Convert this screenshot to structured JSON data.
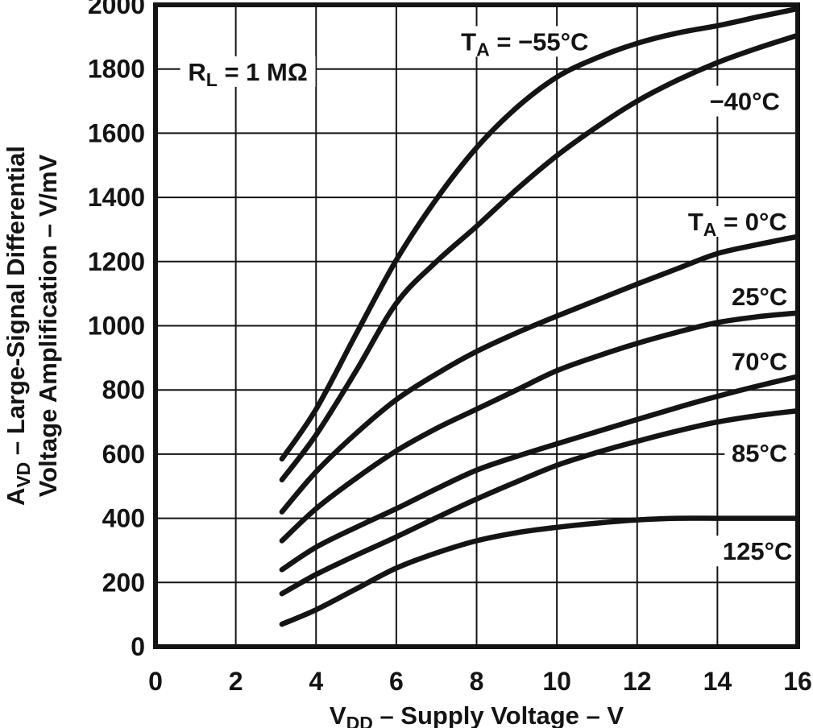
{
  "page": {
    "background": "#ffffff",
    "ink": "#141414"
  },
  "chart_data": {
    "type": "line",
    "title": "",
    "xlabel": {
      "pre": "V",
      "sub": "DD",
      "post": " – Supply Voltage – V"
    },
    "ylabel": [
      {
        "pre": "A",
        "sub": "VD",
        "post": " – Large-Signal Differential"
      },
      {
        "pre": "",
        "sub": "",
        "post": "Voltage Amplification – V/mV"
      }
    ],
    "xlim": [
      0,
      16
    ],
    "ylim": [
      0,
      2000
    ],
    "xticks": [
      0,
      2,
      4,
      6,
      8,
      10,
      12,
      14,
      16
    ],
    "yticks": [
      0,
      200,
      400,
      600,
      800,
      1000,
      1200,
      1400,
      1600,
      1800,
      2000
    ],
    "grid": true,
    "legend_position": "inline-labels",
    "condition": {
      "pre": "R",
      "sub": "L",
      "post": " = 1 MΩ",
      "x": 2.3,
      "y": 1792
    },
    "x": [
      3.15,
      4,
      5,
      6,
      7,
      8,
      9,
      10,
      11,
      12,
      13,
      14,
      15,
      16
    ],
    "series": [
      {
        "name": "TA = −55°C",
        "temperature_c": -55,
        "values": [
          585,
          740,
          975,
          1205,
          1395,
          1555,
          1680,
          1775,
          1835,
          1880,
          1912,
          1935,
          1962,
          1988
        ],
        "label": {
          "pre": "T",
          "sub": "A",
          "post": " = −55°C",
          "x": 9.2,
          "y": 1886
        }
      },
      {
        "name": "−40°C",
        "temperature_c": -40,
        "values": [
          520,
          660,
          860,
          1070,
          1200,
          1310,
          1425,
          1530,
          1620,
          1700,
          1765,
          1820,
          1865,
          1905
        ],
        "label": {
          "pre": "",
          "sub": "",
          "post": "−40°C",
          "x": 14.68,
          "y": 1700
        }
      },
      {
        "name": "TA = 0°C",
        "temperature_c": 0,
        "values": [
          420,
          545,
          665,
          770,
          850,
          920,
          978,
          1030,
          1080,
          1130,
          1178,
          1225,
          1253,
          1278
        ],
        "label": {
          "pre": "T",
          "sub": "A",
          "post": " = 0°C",
          "x": 14.5,
          "y": 1325
        }
      },
      {
        "name": "25°C",
        "temperature_c": 25,
        "values": [
          330,
          430,
          525,
          610,
          680,
          740,
          800,
          860,
          905,
          945,
          980,
          1010,
          1028,
          1040
        ],
        "label": {
          "pre": "",
          "sub": "",
          "post": "25°C",
          "x": 15.05,
          "y": 1092
        }
      },
      {
        "name": "70°C",
        "temperature_c": 70,
        "values": [
          240,
          310,
          372,
          430,
          492,
          550,
          593,
          632,
          670,
          708,
          745,
          780,
          812,
          842
        ],
        "label": {
          "pre": "",
          "sub": "",
          "post": "70°C",
          "x": 15.05,
          "y": 890
        }
      },
      {
        "name": "85°C",
        "temperature_c": 85,
        "values": [
          165,
          225,
          285,
          342,
          402,
          460,
          514,
          565,
          605,
          640,
          672,
          700,
          720,
          735
        ],
        "label": {
          "pre": "",
          "sub": "",
          "post": "85°C",
          "x": 15.05,
          "y": 603
        }
      },
      {
        "name": "125°C",
        "temperature_c": 125,
        "values": [
          70,
          115,
          180,
          245,
          292,
          330,
          355,
          372,
          385,
          395,
          400,
          400,
          400,
          400
        ],
        "label": {
          "pre": "",
          "sub": "",
          "post": "125°C",
          "x": 15.0,
          "y": 298
        }
      }
    ]
  }
}
